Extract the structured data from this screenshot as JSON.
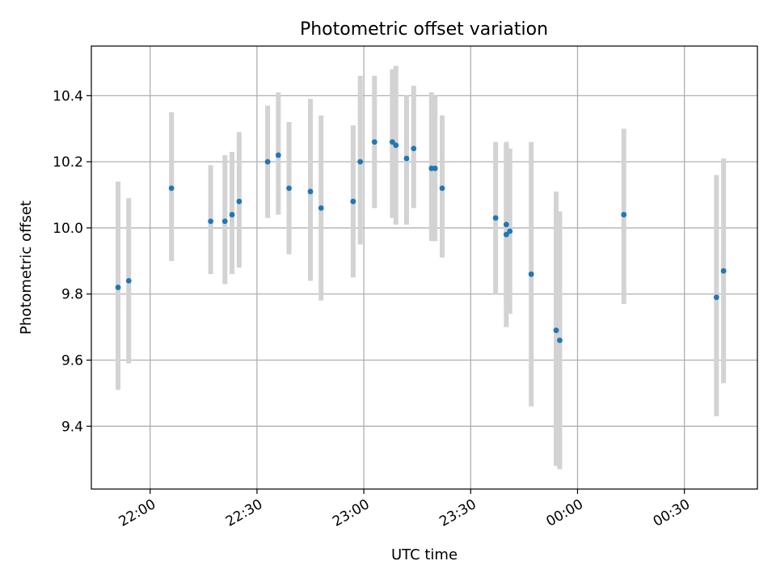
{
  "chart_data": {
    "type": "scatter",
    "title": "Photometric offset variation",
    "xlabel": "UTC time",
    "ylabel": "Photometric offset",
    "grid": true,
    "xlim_minutes_from_2200": [
      -16.5,
      170.5
    ],
    "ylim": [
      9.21,
      10.55
    ],
    "x_ticks": [
      {
        "label": "22:00",
        "minutes": 0
      },
      {
        "label": "22:30",
        "minutes": 30
      },
      {
        "label": "23:00",
        "minutes": 60
      },
      {
        "label": "23:30",
        "minutes": 90
      },
      {
        "label": "00:00",
        "minutes": 120
      },
      {
        "label": "00:30",
        "minutes": 150
      }
    ],
    "y_ticks": [
      9.4,
      9.6,
      9.8,
      10.0,
      10.2,
      10.4
    ],
    "y_tick_labels": [
      "9.4",
      "9.6",
      "9.8",
      "10.0",
      "10.2",
      "10.4"
    ],
    "colors": {
      "point": "#1f77b4",
      "errorbar": "#d3d3d3",
      "grid": "#b0b0b0"
    },
    "points": [
      {
        "t": "21:51",
        "y": 9.82,
        "lo": 9.51,
        "hi": 10.14
      },
      {
        "t": "21:54",
        "y": 9.84,
        "lo": 9.59,
        "hi": 10.09
      },
      {
        "t": "22:06",
        "y": 10.12,
        "lo": 9.9,
        "hi": 10.35
      },
      {
        "t": "22:17",
        "y": 10.02,
        "lo": 9.86,
        "hi": 10.19
      },
      {
        "t": "22:21",
        "y": 10.02,
        "lo": 9.83,
        "hi": 10.22
      },
      {
        "t": "22:23",
        "y": 10.04,
        "lo": 9.86,
        "hi": 10.23
      },
      {
        "t": "22:25",
        "y": 10.08,
        "lo": 9.88,
        "hi": 10.29
      },
      {
        "t": "22:33",
        "y": 10.2,
        "lo": 10.03,
        "hi": 10.37
      },
      {
        "t": "22:36",
        "y": 10.22,
        "lo": 10.04,
        "hi": 10.41
      },
      {
        "t": "22:39",
        "y": 10.12,
        "lo": 9.92,
        "hi": 10.32
      },
      {
        "t": "22:45",
        "y": 10.11,
        "lo": 9.84,
        "hi": 10.39
      },
      {
        "t": "22:48",
        "y": 10.06,
        "lo": 9.78,
        "hi": 10.34
      },
      {
        "t": "22:57",
        "y": 10.08,
        "lo": 9.85,
        "hi": 10.31
      },
      {
        "t": "22:59",
        "y": 10.2,
        "lo": 9.95,
        "hi": 10.46
      },
      {
        "t": "23:03",
        "y": 10.26,
        "lo": 10.06,
        "hi": 10.46
      },
      {
        "t": "23:08",
        "y": 10.26,
        "lo": 10.03,
        "hi": 10.48
      },
      {
        "t": "23:09",
        "y": 10.25,
        "lo": 10.01,
        "hi": 10.49
      },
      {
        "t": "23:12",
        "y": 10.21,
        "lo": 10.01,
        "hi": 10.4
      },
      {
        "t": "23:14",
        "y": 10.24,
        "lo": 10.06,
        "hi": 10.43
      },
      {
        "t": "23:19",
        "y": 10.18,
        "lo": 9.96,
        "hi": 10.41
      },
      {
        "t": "23:20",
        "y": 10.18,
        "lo": 9.96,
        "hi": 10.4
      },
      {
        "t": "23:22",
        "y": 10.12,
        "lo": 9.91,
        "hi": 10.34
      },
      {
        "t": "23:37",
        "y": 10.03,
        "lo": 9.8,
        "hi": 10.26
      },
      {
        "t": "23:40",
        "y": 10.01,
        "lo": 9.77,
        "hi": 10.26
      },
      {
        "t": "23:40",
        "y": 9.98,
        "lo": 9.7,
        "hi": 10.26
      },
      {
        "t": "23:41",
        "y": 9.99,
        "lo": 9.74,
        "hi": 10.24
      },
      {
        "t": "23:47",
        "y": 9.86,
        "lo": 9.46,
        "hi": 10.26
      },
      {
        "t": "23:54",
        "y": 9.69,
        "lo": 9.28,
        "hi": 10.11
      },
      {
        "t": "23:55",
        "y": 9.66,
        "lo": 9.27,
        "hi": 10.05
      },
      {
        "t": "00:13",
        "y": 10.04,
        "lo": 9.77,
        "hi": 10.3
      },
      {
        "t": "00:39",
        "y": 9.79,
        "lo": 9.43,
        "hi": 10.16
      },
      {
        "t": "00:41",
        "y": 9.87,
        "lo": 9.53,
        "hi": 10.21
      }
    ]
  }
}
